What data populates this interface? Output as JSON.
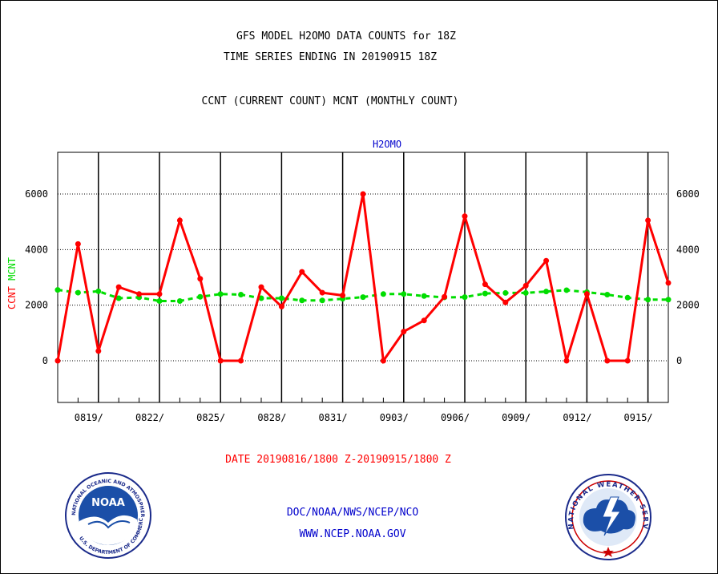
{
  "header": {
    "title_line1": "GFS MODEL H2OMO DATA COUNTS for 18Z",
    "title_line2": "TIME SERIES ENDING IN 20190915 18Z",
    "subtitle": "CCNT (CURRENT COUNT) MCNT (MONTHLY COUNT)"
  },
  "footer": {
    "date_range": "DATE 20190816/1800 Z-20190915/1800 Z",
    "org": "DOC/NOAA/NWS/NCEP/NCO",
    "url": "WWW.NCEP.NOAA.GOV"
  },
  "logos": {
    "noaa_text": "NOAA",
    "noaa_ring": "NATIONAL OCEANIC AND ATMOSPHERIC ADMINISTRATION",
    "noaa_ring_bottom": "U.S. DEPARTMENT OF COMMERCE",
    "nws_ring": "NATIONAL WEATHER SERVICE"
  },
  "chart_data": {
    "type": "line",
    "title": "H2OMO",
    "ylabel_ccnt": "CCNT",
    "ylabel_mcnt": "MCNT",
    "ylim": [
      -1500,
      7500
    ],
    "yticks": [
      0,
      2000,
      4000,
      6000
    ],
    "xlim": [
      0,
      30
    ],
    "xticks": [
      {
        "x": 2,
        "label": "0819/"
      },
      {
        "x": 5,
        "label": "0822/"
      },
      {
        "x": 8,
        "label": "0825/"
      },
      {
        "x": 11,
        "label": "0828/"
      },
      {
        "x": 14,
        "label": "0831/"
      },
      {
        "x": 17,
        "label": "0903/"
      },
      {
        "x": 20,
        "label": "0906/"
      },
      {
        "x": 23,
        "label": "0909/"
      },
      {
        "x": 26,
        "label": "0912/"
      },
      {
        "x": 29,
        "label": "0915/"
      }
    ],
    "grid": true,
    "colors": {
      "ccnt": "#ff0000",
      "mcnt": "#00dd00",
      "title": "#0000cc"
    },
    "series": [
      {
        "name": "CCNT",
        "values": [
          0,
          4200,
          350,
          2650,
          2400,
          2400,
          5050,
          2950,
          0,
          0,
          2650,
          1950,
          3200,
          2450,
          2350,
          6000,
          0,
          1050,
          1450,
          2300,
          5200,
          2750,
          2100,
          2700,
          3600,
          0,
          2400,
          0,
          0,
          5050,
          2800
        ]
      },
      {
        "name": "MCNT",
        "values": [
          2550,
          2450,
          2500,
          2250,
          2280,
          2150,
          2150,
          2300,
          2400,
          2380,
          2250,
          2250,
          2170,
          2170,
          2230,
          2290,
          2400,
          2400,
          2330,
          2280,
          2290,
          2420,
          2440,
          2440,
          2490,
          2540,
          2470,
          2380,
          2270,
          2200,
          2200
        ]
      }
    ]
  }
}
